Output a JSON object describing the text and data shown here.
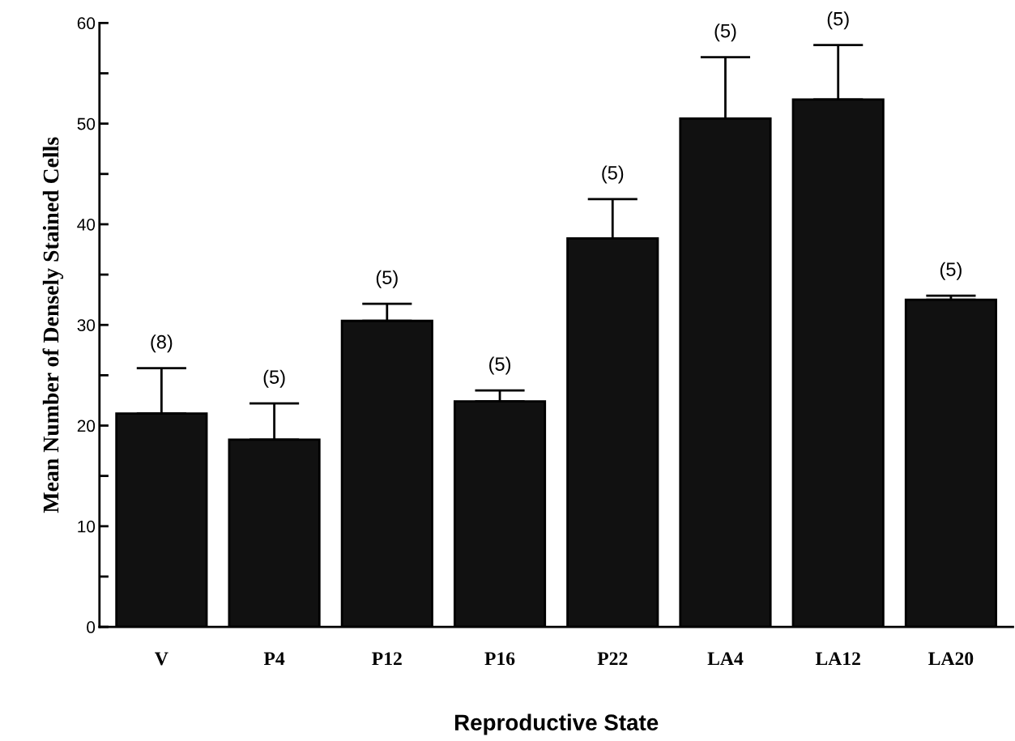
{
  "chart_data": {
    "type": "bar",
    "xlabel": "Reproductive State",
    "ylabel": "Mean Number of Densely Stained Cells",
    "categories": [
      "V",
      "P4",
      "P12",
      "P16",
      "P22",
      "LA4",
      "LA12",
      "LA20"
    ],
    "values": [
      21.2,
      18.6,
      30.4,
      22.4,
      38.6,
      50.5,
      52.4,
      32.5
    ],
    "errors": [
      [
        21.2,
        25.7
      ],
      [
        18.6,
        22.2
      ],
      [
        30.4,
        32.1
      ],
      [
        22.4,
        23.5
      ],
      [
        38.6,
        42.5
      ],
      [
        50.5,
        56.6
      ],
      [
        52.4,
        57.8
      ],
      [
        32.5,
        32.9
      ]
    ],
    "color": "#111111",
    "ylim": [
      0,
      60
    ],
    "yticks": [
      0,
      {
        "value": 5,
        "label": null
      },
      10,
      {
        "value": 15,
        "label": null
      },
      20,
      {
        "value": 25,
        "label": null
      },
      30,
      {
        "value": 35,
        "label": null
      },
      40,
      {
        "value": 45,
        "label": null
      },
      50,
      {
        "value": 55,
        "label": null
      },
      60
    ],
    "annotations": [
      {
        "text": "(8)",
        "x": "V",
        "y": 25.7
      },
      {
        "text": "(5)",
        "x": "P4",
        "y": 22.2
      },
      {
        "text": "(5)",
        "x": "P12",
        "y": 32.1
      },
      {
        "text": "(5)",
        "x": "P16",
        "y": 23.5
      },
      {
        "text": "(5)",
        "x": "P22",
        "y": 42.5
      },
      {
        "text": "(5)",
        "x": "LA4",
        "y": 56.6
      },
      {
        "text": "(5)",
        "x": "LA12",
        "y": 57.8
      },
      {
        "text": "(5)",
        "x": "LA20",
        "y": 32.9
      }
    ],
    "grid": false,
    "legend": false
  }
}
